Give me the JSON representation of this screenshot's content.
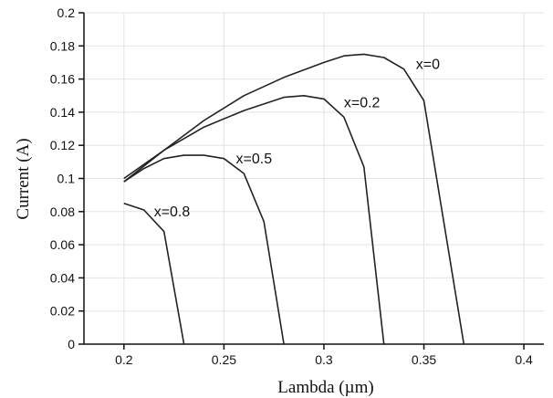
{
  "chart_data": {
    "type": "line",
    "title": "",
    "xlabel": "Lambda (µm)",
    "ylabel": "Current (A)",
    "xlim": [
      0.18,
      0.41
    ],
    "ylim": [
      0,
      0.2
    ],
    "xticks": [
      0.2,
      0.25,
      0.3,
      0.35,
      0.4
    ],
    "xtick_labels": [
      "0.2",
      "0.25",
      "0.3",
      "0.35",
      "0.4"
    ],
    "yticks": [
      0,
      0.02,
      0.04,
      0.06,
      0.08,
      0.1,
      0.12,
      0.14,
      0.16,
      0.18,
      0.2
    ],
    "ytick_labels": [
      "0",
      "0.02",
      "0.04",
      "0.06",
      "0.08",
      "0.1",
      "0.12",
      "0.14",
      "0.16",
      "0.18",
      "0.2"
    ],
    "grid": true,
    "line_color": "#222222",
    "series": [
      {
        "name": "x=0",
        "x": [
          0.2,
          0.22,
          0.24,
          0.26,
          0.28,
          0.3,
          0.31,
          0.32,
          0.33,
          0.34,
          0.35,
          0.37
        ],
        "y": [
          0.098,
          0.117,
          0.135,
          0.15,
          0.161,
          0.17,
          0.174,
          0.175,
          0.173,
          0.166,
          0.147,
          0.0
        ],
        "label_at": [
          0.346,
          0.166
        ]
      },
      {
        "name": "x=0.2",
        "x": [
          0.2,
          0.22,
          0.24,
          0.26,
          0.28,
          0.29,
          0.3,
          0.31,
          0.32,
          0.33
        ],
        "y": [
          0.1,
          0.117,
          0.131,
          0.141,
          0.149,
          0.15,
          0.148,
          0.137,
          0.107,
          0.0
        ],
        "label_at": [
          0.31,
          0.143
        ]
      },
      {
        "name": "x=0.5",
        "x": [
          0.2,
          0.21,
          0.22,
          0.23,
          0.24,
          0.25,
          0.26,
          0.27,
          0.28
        ],
        "y": [
          0.098,
          0.106,
          0.112,
          0.114,
          0.114,
          0.112,
          0.103,
          0.074,
          0.0
        ],
        "label_at": [
          0.256,
          0.109
        ]
      },
      {
        "name": "x=0.8",
        "x": [
          0.2,
          0.21,
          0.22,
          0.23
        ],
        "y": [
          0.085,
          0.081,
          0.068,
          0.0
        ],
        "label_at": [
          0.215,
          0.077
        ]
      }
    ]
  }
}
